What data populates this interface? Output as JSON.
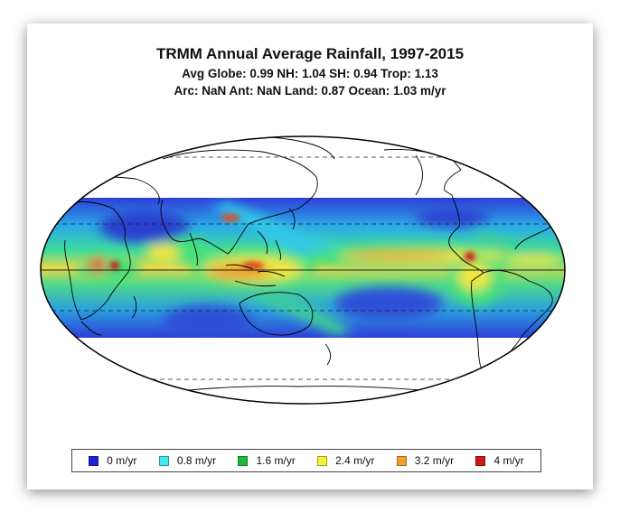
{
  "figure": {
    "title": "TRMM Annual Average Rainfall, 1997-2015",
    "stats_line1": "Avg Globe: 0.99  NH: 1.04  SH: 0.94  Trop: 1.13",
    "stats_line2": "Arc: NaN  Ant: NaN  Land: 0.87 Ocean: 1.03 m/yr"
  },
  "map": {
    "projection": "Mollweide",
    "data_coverage_latitude": [
      -50,
      50
    ],
    "graticule_latitudes": [
      -60,
      -30,
      0,
      30,
      60
    ]
  },
  "legend": {
    "items": [
      {
        "label": "0 m/yr",
        "color": "#2020d8"
      },
      {
        "label": "0.8 m/yr",
        "color": "#40eaf0"
      },
      {
        "label": "1.6 m/yr",
        "color": "#22b83c"
      },
      {
        "label": "2.4 m/yr",
        "color": "#f2f23a"
      },
      {
        "label": "3.2 m/yr",
        "color": "#f0a02c"
      },
      {
        "label": "4 m/yr",
        "color": "#d01818"
      }
    ]
  }
}
